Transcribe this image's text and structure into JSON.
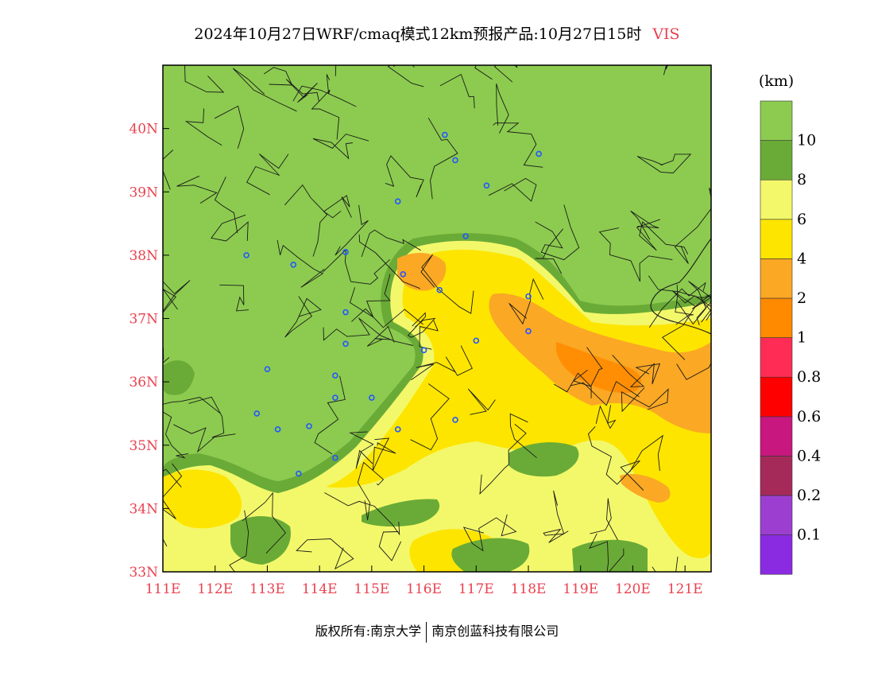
{
  "title": {
    "main": "2024年10月27日WRF/cmaq模式12km预报产品:10月27日15时",
    "variable": "VIS"
  },
  "map": {
    "lon_min": 111,
    "lon_max": 121.5,
    "lat_min": 33,
    "lat_max": 41,
    "lat_labels": [
      "33N",
      "34N",
      "35N",
      "36N",
      "37N",
      "38N",
      "39N",
      "40N"
    ],
    "lat_values": [
      33,
      34,
      35,
      36,
      37,
      38,
      39,
      40
    ],
    "lon_labels": [
      "111E",
      "112E",
      "113E",
      "114E",
      "115E",
      "116E",
      "117E",
      "118E",
      "119E",
      "120E",
      "121E"
    ],
    "lon_values": [
      111,
      112,
      113,
      114,
      115,
      116,
      117,
      118,
      119,
      120,
      121
    ],
    "label_color": "#e8424f",
    "stations": [
      [
        116.4,
        39.9
      ],
      [
        116.6,
        39.5
      ],
      [
        117.2,
        39.1
      ],
      [
        118.2,
        39.6
      ],
      [
        115.5,
        38.85
      ],
      [
        116.8,
        38.3
      ],
      [
        112.6,
        38.0
      ],
      [
        113.5,
        37.85
      ],
      [
        114.5,
        38.05
      ],
      [
        115.6,
        37.7
      ],
      [
        116.3,
        37.45
      ],
      [
        114.5,
        37.1
      ],
      [
        114.5,
        36.6
      ],
      [
        116.0,
        36.5
      ],
      [
        117.0,
        36.65
      ],
      [
        118.0,
        37.35
      ],
      [
        118.0,
        36.8
      ],
      [
        113.0,
        36.2
      ],
      [
        114.3,
        36.1
      ],
      [
        114.3,
        35.75
      ],
      [
        115.0,
        35.75
      ],
      [
        112.8,
        35.5
      ],
      [
        113.2,
        35.25
      ],
      [
        113.8,
        35.3
      ],
      [
        115.5,
        35.25
      ],
      [
        116.6,
        35.4
      ],
      [
        114.3,
        34.8
      ],
      [
        113.6,
        34.55
      ]
    ]
  },
  "colorbar": {
    "unit": "(km)",
    "colors": [
      "#8a2be2",
      "#9c3fd1",
      "#a52a5a",
      "#c8177e",
      "#ff0000",
      "#ff2d55",
      "#ff8a00",
      "#fba824",
      "#fde500",
      "#f3f86a",
      "#6aab37",
      "#8ccb4f"
    ],
    "labels": [
      "0.1",
      "0.2",
      "0.4",
      "0.6",
      "0.8",
      "1",
      "2",
      "4",
      "6",
      "8",
      "10"
    ]
  },
  "footer": {
    "left": "版权所有:南京大学",
    "right": "南京创蓝科技有限公司"
  }
}
